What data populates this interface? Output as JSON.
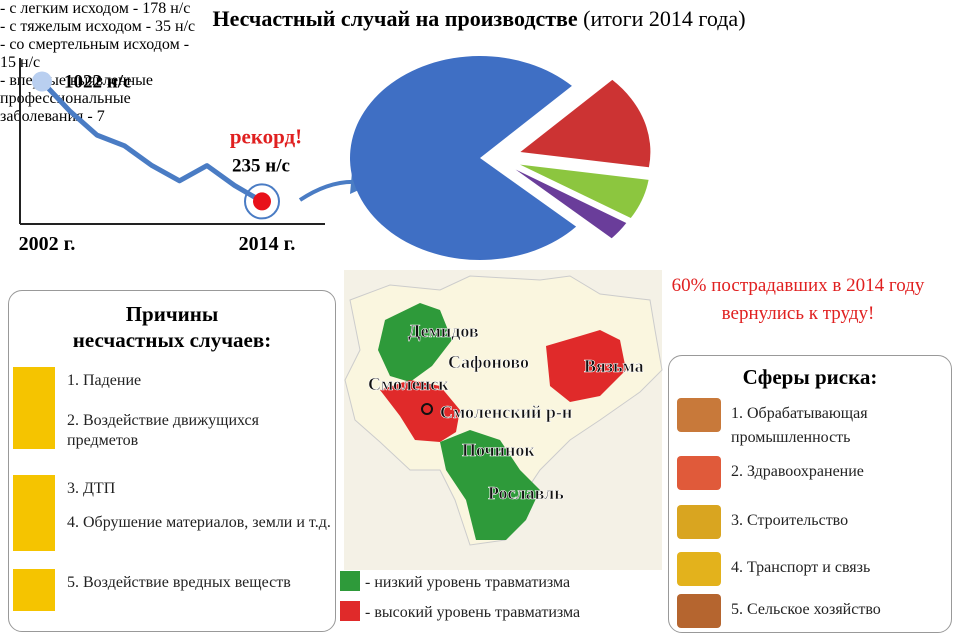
{
  "title": "Несчастный случай на производстве",
  "title_suffix": "(итоги 2014 года)",
  "chart_data": [
    {
      "type": "line",
      "categories": [
        "2002 г.",
        null,
        null,
        null,
        null,
        null,
        null,
        null,
        "2014 г."
      ],
      "values": [
        1022,
        830,
        670,
        600,
        470,
        370,
        470,
        340,
        235
      ],
      "value_labels": [
        "1022 н/с",
        null,
        null,
        null,
        null,
        null,
        null,
        null,
        "235 н/с"
      ],
      "annotation": "рекорд!",
      "color": "#4a7cc4",
      "ylim": [
        100,
        1150
      ]
    },
    {
      "type": "pie",
      "categories": [
        "- с легким исходом - 178 н/с",
        "- с тяжелым исходом - 35 н/с",
        "- со смертельным исходом - 15 н/с",
        "- впервые выявленные профессиональные заболевания - 7"
      ],
      "values": [
        178,
        35,
        15,
        7
      ],
      "colors": [
        "#3f6fc4",
        "#cc3333",
        "#8cc63f",
        "#6a3d9a"
      ]
    }
  ],
  "note": "60% пострадавших в 2014 году вернулись к труду!",
  "causes": {
    "title": "Причины несчастных случаев:",
    "items": [
      "1. Падение",
      "2. Воздействие движущихся предметов",
      "3. ДТП",
      "4. Обрушение материалов, земли и т.д.",
      "5. Воздействие вредных веществ"
    ]
  },
  "map": {
    "labels": [
      "Демидов",
      "Сафоново",
      "Вязьма",
      "Смоленск",
      "Смоленский р-н",
      "Починок",
      "Рославль"
    ],
    "legend": [
      "- низкий уровень травматизма",
      "- высокий уровень травматизма"
    ]
  },
  "risks": {
    "title": "Сферы риска:",
    "items": [
      "1. Обрабатывающая промышленность",
      "2. Здравоохранение",
      "3. Строительство",
      "4. Транспорт и связь",
      "5. Сельское хозяйство"
    ]
  }
}
